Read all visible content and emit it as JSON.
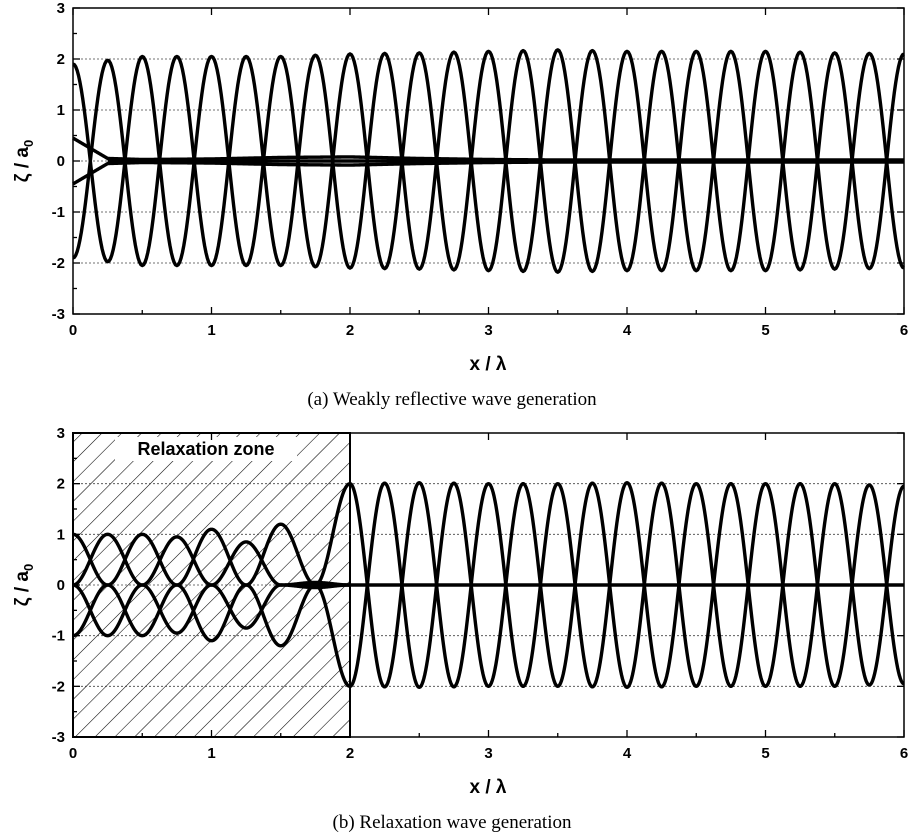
{
  "chart_data": [
    {
      "id": "a",
      "type": "line",
      "caption": "(a)  Weakly reflective wave generation",
      "xlabel": "x / λ",
      "ylabel": "ζ / a0",
      "ylabel_main": "ζ / a",
      "ylabel_sub": "0",
      "xlim": [
        0,
        6
      ],
      "ylim": [
        -3,
        3
      ],
      "xticks": [
        "0",
        "1",
        "2",
        "3",
        "4",
        "5",
        "6"
      ],
      "yticks": [
        "3",
        "2",
        "1",
        "0",
        "-1",
        "-2",
        "-3"
      ],
      "grid_y": [
        2,
        1,
        0,
        -1,
        -2
      ],
      "series": [
        {
          "kind": "envelope_upper",
          "x": [
            0,
            0.5,
            1,
            1.5,
            2,
            2.5,
            3,
            3.5,
            4,
            4.5,
            5,
            5.5,
            6
          ],
          "y": [
            1.9,
            2.05,
            2.05,
            2.05,
            2.1,
            2.12,
            2.15,
            2.18,
            2.15,
            2.15,
            2.15,
            2.12,
            2.1
          ]
        },
        {
          "kind": "envelope_lower",
          "x": [
            0,
            0.5,
            1,
            1.5,
            2,
            2.5,
            3,
            3.5,
            4,
            4.5,
            5,
            5.5,
            6
          ],
          "y": [
            -1.9,
            -2.05,
            -2.05,
            -2.05,
            -2.1,
            -2.12,
            -2.15,
            -2.18,
            -2.15,
            -2.15,
            -2.15,
            -2.12,
            -2.1
          ]
        },
        {
          "kind": "reflection_upper",
          "x": [
            0,
            0.25,
            0.5,
            1,
            1.5,
            2,
            2.5,
            3,
            3.5,
            4,
            6
          ],
          "y": [
            0.45,
            0.05,
            0.03,
            0.04,
            0.07,
            0.08,
            0.05,
            0.03,
            0.02,
            0.02,
            0.02
          ]
        },
        {
          "kind": "reflection_lower",
          "x": [
            0,
            0.25,
            0.5,
            1,
            1.5,
            2,
            2.5,
            3,
            3.5,
            4,
            6
          ],
          "y": [
            -0.45,
            -0.05,
            -0.03,
            -0.04,
            -0.07,
            -0.08,
            -0.05,
            -0.03,
            -0.02,
            -0.02,
            -0.02
          ]
        }
      ]
    },
    {
      "id": "b",
      "type": "line",
      "caption": "(b) Relaxation wave generation",
      "xlabel": "x / λ",
      "ylabel": "ζ / a0",
      "ylabel_main": "ζ / a",
      "ylabel_sub": "0",
      "xlim": [
        0,
        6
      ],
      "ylim": [
        -3,
        3
      ],
      "xticks": [
        "0",
        "1",
        "2",
        "3",
        "4",
        "5",
        "6"
      ],
      "yticks": [
        "3",
        "2",
        "1",
        "0",
        "-1",
        "-2",
        "-3"
      ],
      "grid_y": [
        2,
        1,
        0,
        -1,
        -2
      ],
      "relaxation_zone": {
        "label": "Relaxation zone",
        "x": [
          0,
          2
        ]
      },
      "series": [
        {
          "kind": "envelope_upper",
          "x": [
            2,
            2.5,
            3,
            3.5,
            4,
            4.5,
            5,
            5.5,
            6
          ],
          "y": [
            2.0,
            2.02,
            2.0,
            2.0,
            2.02,
            2.0,
            2.0,
            2.0,
            1.95
          ]
        },
        {
          "kind": "envelope_lower",
          "x": [
            2,
            2.5,
            3,
            3.5,
            4,
            4.5,
            5,
            5.5,
            6
          ],
          "y": [
            -2.0,
            -2.02,
            -2.0,
            -2.0,
            -2.02,
            -2.0,
            -2.0,
            -2.0,
            -1.95
          ]
        },
        {
          "kind": "zone_wave",
          "phase": 0,
          "x": [
            0,
            0.25,
            0.5,
            0.75,
            1,
            1.25,
            1.5,
            1.75,
            2
          ],
          "y": [
            1.0,
            0,
            -1.0,
            0,
            1.1,
            0,
            -1.2,
            0,
            2.0
          ]
        },
        {
          "kind": "zone_wave",
          "phase": 0.25,
          "x": [
            0,
            0.25,
            0.5,
            0.75,
            1,
            1.25,
            1.5,
            1.75,
            2
          ],
          "y": [
            0,
            -1.0,
            0,
            0.95,
            0,
            -0.85,
            0,
            0.05,
            0
          ]
        },
        {
          "kind": "zone_wave",
          "phase": 0.5,
          "x": [
            0,
            0.25,
            0.5,
            0.75,
            1,
            1.25,
            1.5,
            1.75,
            2
          ],
          "y": [
            -1.0,
            0,
            1.0,
            0,
            -1.1,
            0,
            1.2,
            0,
            -2.0
          ]
        },
        {
          "kind": "zone_wave",
          "phase": 0.75,
          "x": [
            0,
            0.25,
            0.5,
            0.75,
            1,
            1.25,
            1.5,
            1.75,
            2
          ],
          "y": [
            0,
            1.0,
            0,
            -0.95,
            0,
            0.85,
            0,
            -0.05,
            0
          ]
        }
      ]
    }
  ]
}
